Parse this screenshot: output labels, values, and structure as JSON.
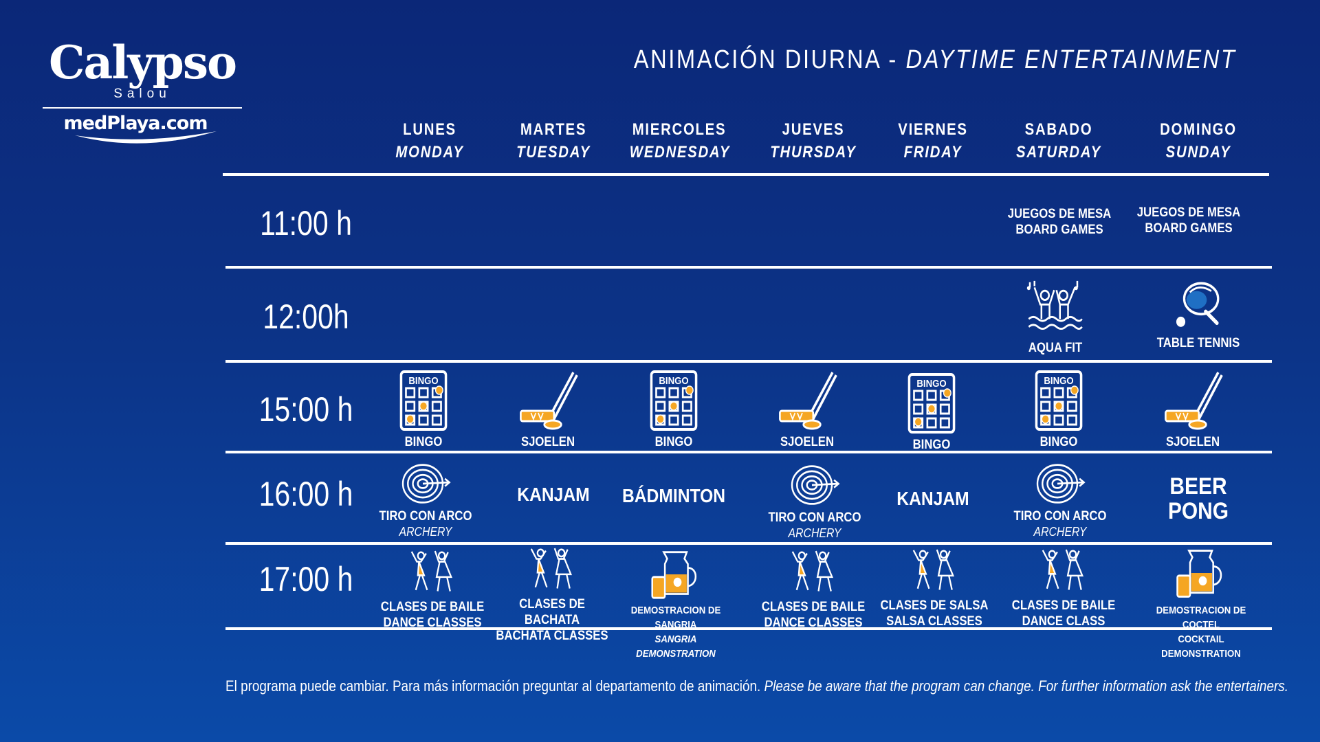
{
  "logo": {
    "brand": "Calypso",
    "city": "Salou",
    "sub": "medPlaya.com"
  },
  "title": {
    "es": "ANIMACIÓN DIURNA - ",
    "en": "DAYTIME ENTERTAINMENT"
  },
  "days": [
    {
      "es": "LUNES",
      "en": "MONDAY"
    },
    {
      "es": "MARTES",
      "en": "TUESDAY"
    },
    {
      "es": "MIERCOLES",
      "en": "WEDNESDAY"
    },
    {
      "es": "JUEVES",
      "en": "THURSDAY"
    },
    {
      "es": "VIERNES",
      "en": "FRIDAY"
    },
    {
      "es": "SABADO",
      "en": "SATURDAY"
    },
    {
      "es": "DOMINGO",
      "en": "SUNDAY"
    }
  ],
  "times": [
    "11:00 h",
    "12:00h",
    "15:00 h",
    "16:00 h",
    "17:00 h"
  ],
  "schedule": {
    "r11": {
      "sat": {
        "l1": "JUEGOS DE MESA",
        "l2": "BOARD GAMES"
      },
      "sun": {
        "l1": "JUEGOS DE MESA",
        "l2": "BOARD GAMES"
      }
    },
    "r12": {
      "sat": {
        "l1": "AQUA FIT",
        "icon": "aqua-fit-icon"
      },
      "sun": {
        "l1": "TABLE TENNIS",
        "icon": "table-tennis-icon"
      }
    },
    "r15": {
      "mon": {
        "l1": "BINGO",
        "icon": "bingo-card-icon"
      },
      "tue": {
        "l1": "SJOELEN",
        "icon": "sjoelen-stick-icon"
      },
      "wed": {
        "l1": "BINGO",
        "icon": "bingo-card-icon"
      },
      "thu": {
        "l1": "SJOELEN",
        "icon": "sjoelen-stick-icon"
      },
      "fri": {
        "l1": "BINGO",
        "icon": "bingo-card-icon"
      },
      "sat": {
        "l1": "BINGO",
        "icon": "bingo-card-icon"
      },
      "sun": {
        "l1": "SJOELEN",
        "icon": "sjoelen-stick-icon"
      }
    },
    "r16": {
      "mon": {
        "l1": "TIRO CON ARCO",
        "l2": "ARCHERY",
        "icon": "archery-target-icon"
      },
      "tue": {
        "l1": "KANJAM"
      },
      "wed": {
        "l1": "BÁDMINTON"
      },
      "thu": {
        "l1": "TIRO CON ARCO",
        "l2": "ARCHERY",
        "icon": "archery-target-icon"
      },
      "fri": {
        "l1": "KANJAM"
      },
      "sat": {
        "l1": "TIRO CON ARCO",
        "l2": "ARCHERY",
        "icon": "archery-target-icon"
      },
      "sun": {
        "l1": "BEER",
        "l2": "PONG"
      }
    },
    "r17": {
      "mon": {
        "l1": "CLASES DE BAILE",
        "l2": "DANCE CLASSES",
        "icon": "dancers-icon"
      },
      "tue": {
        "l1": "CLASES DE BACHATA",
        "l2": "BACHATA CLASSES",
        "icon": "dancers-icon"
      },
      "wed": {
        "l1": "DEMOSTRACION DE SANGRIA",
        "l2": "SANGRIA DEMONSTRATION",
        "icon": "sangria-jug-icon"
      },
      "thu": {
        "l1": "CLASES DE BAILE",
        "l2": "DANCE CLASSES",
        "icon": "dancers-icon"
      },
      "fri": {
        "l1": "CLASES DE SALSA",
        "l2": "SALSA CLASSES",
        "icon": "dancers-icon"
      },
      "sat": {
        "l1": "CLASES DE BAILE",
        "l2": "DANCE CLASS",
        "icon": "dancers-icon"
      },
      "sun": {
        "l1": "DEMOSTRACION DE COCTEL",
        "l2": "COCKTAIL DEMONSTRATION",
        "icon": "cocktail-jug-icon"
      }
    }
  },
  "bingo_label": "BINGO",
  "footer": {
    "es": "El programa puede cambiar. Para más información preguntar  al departamento de animación. ",
    "en": "Please be aware that the program can change. For further information ask the entertainers."
  },
  "colors": {
    "background": "#0c3387",
    "accent": "#f5a623",
    "text": "#ffffff"
  }
}
